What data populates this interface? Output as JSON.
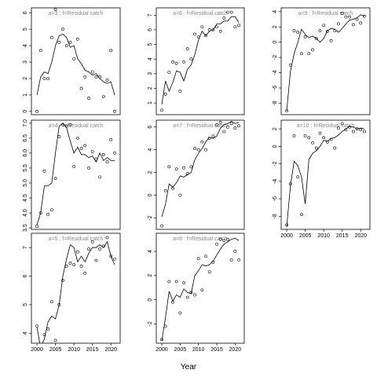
{
  "xlabel": "Year",
  "chart_data": [
    {
      "type": "scatter",
      "title": "a=3 : f=Residual catch",
      "x": [
        2000,
        2001,
        2002,
        2003,
        2004,
        2005,
        2006,
        2007,
        2008,
        2009,
        2010,
        2011,
        2012,
        2013,
        2014,
        2015,
        2016,
        2017,
        2018,
        2019,
        2020,
        2021
      ],
      "series": [
        {
          "style": "points",
          "color": "#000000",
          "values": [
            0.0,
            3.7,
            2.0,
            2.0,
            4.5,
            6.2,
            4.2,
            5.0,
            4.0,
            4.2,
            3.2,
            4.4,
            1.4,
            2.1,
            0.8,
            2.4,
            2.1,
            2.1,
            0.9,
            1.9,
            3.7,
            0.0
          ]
        },
        {
          "style": "line",
          "color": "#000000",
          "values": [
            1.0,
            2.1,
            2.4,
            2.3,
            3.0,
            4.0,
            4.6,
            4.7,
            4.5,
            3.9,
            4.0,
            3.2,
            2.9,
            2.5,
            2.4,
            2.2,
            2.3,
            2.0,
            1.8,
            1.7,
            1.8,
            1.0
          ]
        }
      ],
      "xlim": [
        1998.5,
        2022.5
      ],
      "ylim": [
        -0.2,
        6.3
      ],
      "yticks": [
        0,
        1,
        2,
        3,
        4,
        5,
        6
      ]
    },
    {
      "type": "scatter",
      "title": "a=4 : f=Residual catch",
      "x": [
        2000,
        2001,
        2002,
        2003,
        2004,
        2005,
        2006,
        2007,
        2008,
        2009,
        2010,
        2011,
        2012,
        2013,
        2014,
        2015,
        2016,
        2017,
        2018,
        2019,
        2020,
        2021
      ],
      "series": [
        {
          "style": "points",
          "color": "#000000",
          "values": [
            3.55,
            4.0,
            5.4,
            3.95,
            4.1,
            5.15,
            6.55,
            6.95,
            6.9,
            6.95,
            5.55,
            6.5,
            6.15,
            6.25,
            5.5,
            6.05,
            5.8,
            5.2,
            5.95,
            5.7,
            6.45,
            6.0
          ]
        },
        {
          "style": "line",
          "color": "#000000",
          "values": [
            3.6,
            4.0,
            4.9,
            4.9,
            5.0,
            6.0,
            6.9,
            7.0,
            6.85,
            6.4,
            6.0,
            6.2,
            5.95,
            5.95,
            5.85,
            5.9,
            5.7,
            6.0,
            5.75,
            5.85,
            5.75,
            5.75
          ]
        }
      ],
      "xlim": [
        1998.5,
        2022.5
      ],
      "ylim": [
        3.45,
        7.1
      ],
      "yticks": [
        3.5,
        {
          "value": 4,
          "label": "4.0"
        },
        4.5,
        {
          "value": 5,
          "label": "5.0"
        },
        5.5,
        {
          "value": 6,
          "label": "6.0"
        },
        6.5,
        {
          "value": 7,
          "label": "7.0"
        }
      ]
    },
    {
      "type": "scatter",
      "title": "a=5 : f=Residual catch",
      "x": [
        2000,
        2001,
        2002,
        2003,
        2004,
        2005,
        2006,
        2007,
        2008,
        2009,
        2010,
        2011,
        2012,
        2013,
        2014,
        2015,
        2016,
        2017,
        2018,
        2019,
        2020,
        2021
      ],
      "series": [
        {
          "style": "points",
          "color": "#000000",
          "values": [
            4.25,
            3.6,
            3.95,
            4.15,
            5.1,
            3.75,
            5.0,
            5.85,
            6.35,
            6.45,
            6.4,
            6.85,
            6.35,
            6.1,
            6.95,
            7.2,
            6.55,
            6.95,
            7.05,
            7.35,
            6.7,
            6.6
          ]
        },
        {
          "style": "line",
          "color": "#000000",
          "values": [
            4.2,
            3.5,
            3.8,
            4.4,
            4.6,
            4.5,
            5.0,
            6.0,
            6.6,
            7.1,
            7.0,
            6.5,
            6.7,
            6.5,
            6.8,
            7.0,
            7.0,
            7.1,
            7.0,
            7.2,
            6.7,
            6.4
          ]
        }
      ],
      "xlim": [
        1998.5,
        2022.5
      ],
      "ylim": [
        3.65,
        7.5
      ],
      "yticks": [
        4,
        5,
        6,
        7
      ],
      "xticks": [
        2000,
        2005,
        2010,
        2015,
        2020
      ]
    },
    {
      "type": "scatter",
      "title": "a=6 : f=Residual catch",
      "x": [
        2000,
        2001,
        2002,
        2003,
        2004,
        2005,
        2006,
        2007,
        2008,
        2009,
        2010,
        2011,
        2012,
        2013,
        2014,
        2015,
        2016,
        2017,
        2018,
        2019,
        2020,
        2021
      ],
      "series": [
        {
          "style": "points",
          "color": "#000000",
          "values": [
            0.5,
            1.6,
            3.1,
            3.8,
            3.7,
            1.8,
            3.8,
            4.7,
            4.0,
            5.7,
            5.5,
            6.2,
            5.6,
            6.0,
            6.0,
            6.2,
            5.9,
            6.8,
            7.2,
            7.2,
            6.2,
            6.3
          ]
        },
        {
          "style": "line",
          "color": "#000000",
          "values": [
            0.9,
            2.5,
            1.8,
            2.4,
            3.2,
            3.1,
            2.5,
            3.3,
            3.6,
            4.3,
            5.3,
            5.9,
            5.6,
            5.9,
            6.0,
            6.4,
            6.4,
            6.6,
            6.6,
            6.9,
            6.9,
            6.5
          ]
        }
      ],
      "xlim": [
        1998.5,
        2022.5
      ],
      "ylim": [
        0.2,
        7.5
      ],
      "yticks": [
        1,
        2,
        3,
        4,
        5,
        6,
        7
      ]
    },
    {
      "type": "scatter",
      "title": "a=7 : f=Residual catch",
      "x": [
        2000,
        2001,
        2002,
        2003,
        2004,
        2005,
        2006,
        2007,
        2008,
        2009,
        2010,
        2011,
        2012,
        2013,
        2014,
        2015,
        2016,
        2017,
        2018,
        2019,
        2020,
        2021
      ],
      "series": [
        {
          "style": "points",
          "color": "#000000",
          "values": [
            -2.7,
            0.4,
            2.5,
            0.6,
            2.3,
            0.0,
            2.4,
            1.9,
            2.5,
            4.1,
            4.0,
            4.7,
            4.0,
            5.0,
            5.2,
            6.2,
            6.4,
            5.6,
            6.0,
            6.3,
            5.9,
            6.1
          ]
        },
        {
          "style": "line",
          "color": "#000000",
          "values": [
            -1.9,
            -0.8,
            1.0,
            0.7,
            1.1,
            1.7,
            1.6,
            1.8,
            2.0,
            3.1,
            3.7,
            4.1,
            4.7,
            5.1,
            5.0,
            5.2,
            5.9,
            6.2,
            6.3,
            6.5,
            6.3,
            6.4
          ]
        }
      ],
      "xlim": [
        1998.5,
        2022.5
      ],
      "ylim": [
        -3.0,
        6.6
      ],
      "yticks": [
        -2,
        0,
        2,
        4,
        6
      ]
    },
    {
      "type": "scatter",
      "title": "a=8 : f=Residual catch",
      "x": [
        2000,
        2001,
        2002,
        2003,
        2004,
        2005,
        2006,
        2007,
        2008,
        2009,
        2010,
        2011,
        2012,
        2013,
        2014,
        2015,
        2016,
        2017,
        2018,
        2019,
        2020,
        2021
      ],
      "series": [
        {
          "style": "points",
          "color": "#000000",
          "values": [
            -3.3,
            -2.2,
            1.5,
            -0.2,
            1.5,
            -1.1,
            1.4,
            0.2,
            0.6,
            0.4,
            3.4,
            0.8,
            3.6,
            2.3,
            3.1,
            4.6,
            5.0,
            4.9,
            5.0,
            3.3,
            4.0,
            3.3
          ]
        },
        {
          "style": "line",
          "color": "#000000",
          "values": [
            -3.4,
            -1.5,
            0.7,
            -0.1,
            0.4,
            0.2,
            0.9,
            0.6,
            0.5,
            2.0,
            2.4,
            2.9,
            2.8,
            2.9,
            3.2,
            3.7,
            4.2,
            4.6,
            4.8,
            5.0,
            5.1,
            4.9
          ]
        }
      ],
      "xlim": [
        1998.5,
        2022.5
      ],
      "ylim": [
        -3.6,
        5.5
      ],
      "yticks": [
        -2,
        0,
        2,
        4
      ],
      "xticks": [
        2000,
        2005,
        2010,
        2015,
        2020
      ]
    },
    {
      "type": "scatter",
      "title": "a=9 : f=Residual catch",
      "x": [
        2000,
        2001,
        2002,
        2003,
        2004,
        2005,
        2006,
        2007,
        2008,
        2009,
        2010,
        2011,
        2012,
        2013,
        2014,
        2015,
        2016,
        2017,
        2018,
        2019,
        2020,
        2021
      ],
      "series": [
        {
          "style": "points",
          "color": "#000000",
          "values": [
            -9.0,
            -3.0,
            1.5,
            1.3,
            -1.5,
            0.7,
            -1.5,
            -1.0,
            0.5,
            1.5,
            2.2,
            1.4,
            0.2,
            1.5,
            2.4,
            3.8,
            3.3,
            3.3,
            2.3,
            3.0,
            2.5,
            3.4
          ]
        },
        {
          "style": "line",
          "color": "#000000",
          "values": [
            -9.0,
            -3.8,
            -1.5,
            0.0,
            1.7,
            1.0,
            0.6,
            0.8,
            0.5,
            0.0,
            0.5,
            1.5,
            1.8,
            1.7,
            1.3,
            1.8,
            2.4,
            2.9,
            3.0,
            3.2,
            3.6,
            3.4
          ]
        }
      ],
      "xlim": [
        1998.5,
        2022.5
      ],
      "ylim": [
        -9.5,
        4.5
      ],
      "yticks": [
        -8,
        -6,
        -4,
        -2,
        0,
        2,
        4
      ]
    },
    {
      "type": "scatter",
      "title": "a=10 : f=Residual catch",
      "x": [
        2000,
        2001,
        2002,
        2003,
        2004,
        2005,
        2006,
        2007,
        2008,
        2009,
        2010,
        2011,
        2012,
        2013,
        2014,
        2015,
        2016,
        2017,
        2018,
        2019,
        2020,
        2021
      ],
      "series": [
        {
          "style": "points",
          "color": "#000000",
          "values": [
            -9.0,
            -4.3,
            1.2,
            -3.5,
            -7.8,
            1.2,
            1.0,
            0.4,
            -0.2,
            1.5,
            1.0,
            0.5,
            0.8,
            -0.2,
            2.1,
            2.6,
            1.9,
            2.2,
            1.7,
            2.0,
            1.9,
            1.7
          ]
        },
        {
          "style": "line",
          "color": "#000000",
          "values": [
            -9.2,
            -4.5,
            -1.7,
            -2.2,
            -3.5,
            -6.6,
            -1.5,
            -0.8,
            -0.5,
            0.0,
            0.7,
            0.6,
            0.9,
            1.0,
            1.3,
            1.7,
            2.0,
            2.3,
            2.2,
            2.0,
            2.1,
            2.0
          ]
        }
      ],
      "xlim": [
        1998.5,
        2022.5
      ],
      "ylim": [
        -9.5,
        3.0
      ],
      "yticks": [
        -8,
        -6,
        -4,
        -2,
        0,
        2
      ],
      "xticks": [
        2000,
        2005,
        2010,
        2015,
        2020
      ]
    }
  ]
}
